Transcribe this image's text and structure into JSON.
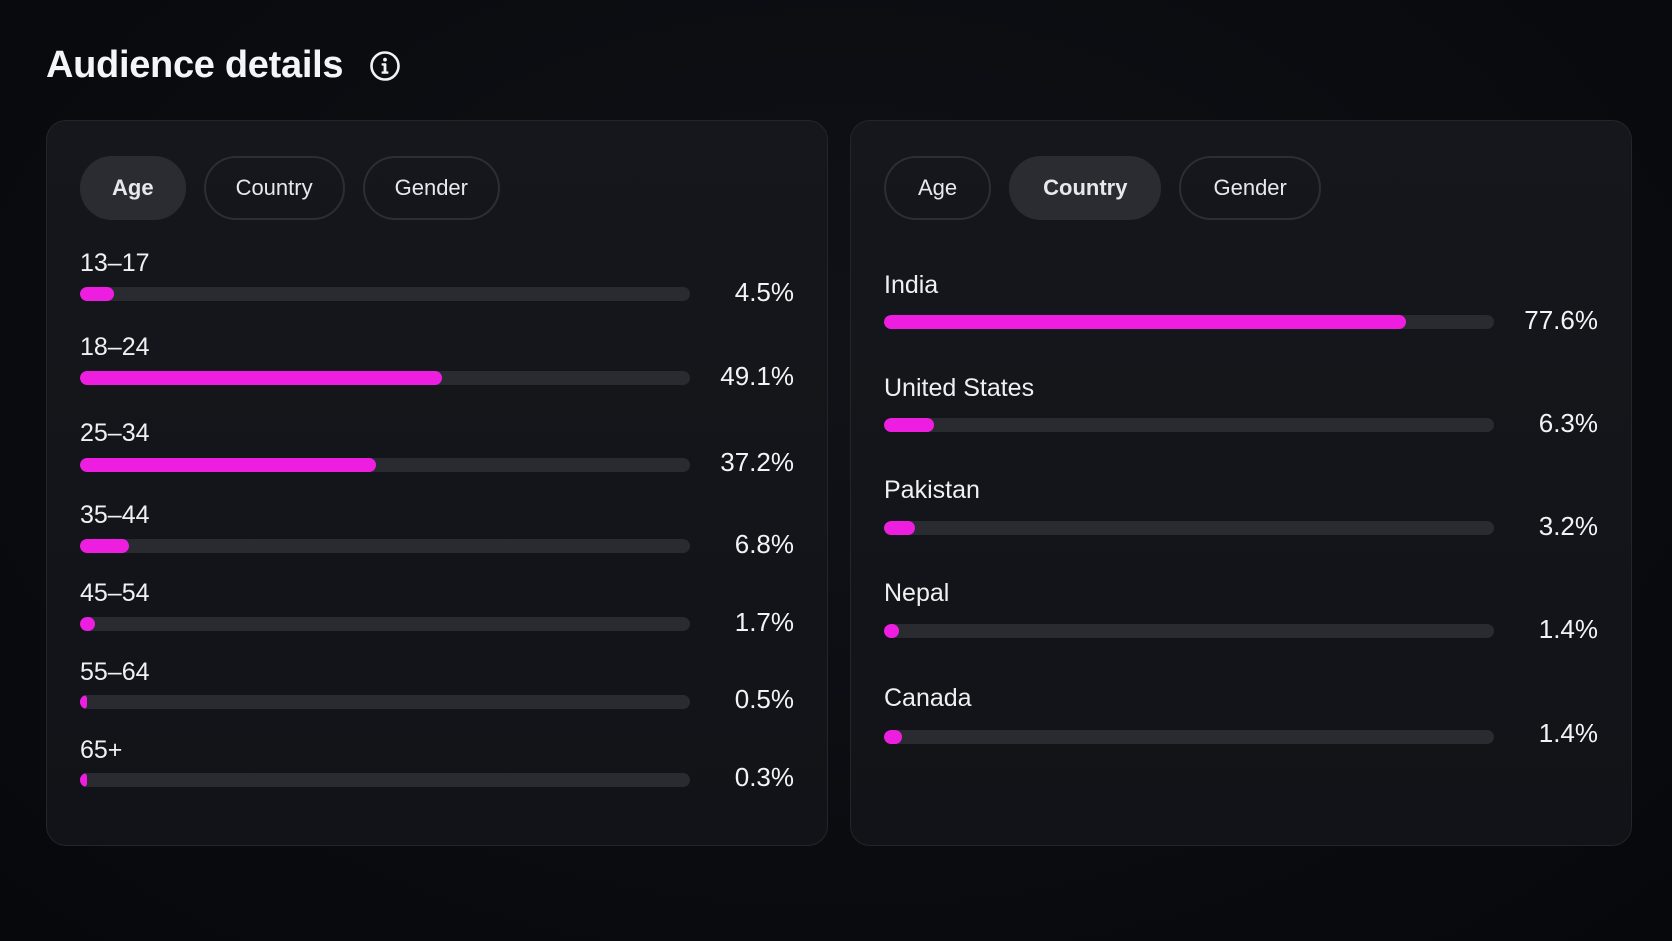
{
  "page": {
    "title": "Audience details",
    "accent": "#ee1ee0",
    "info_icon": "info-circle-icon"
  },
  "age_card": {
    "tabs": [
      {
        "label": "Age",
        "active": true
      },
      {
        "label": "Country",
        "active": false
      },
      {
        "label": "Gender",
        "active": false
      }
    ],
    "rows": [
      {
        "label": "13–17",
        "value": "4.5%",
        "fraction": 0.055
      },
      {
        "label": "18–24",
        "value": "49.1%",
        "fraction": 0.593
      },
      {
        "label": "25–34",
        "value": "37.2%",
        "fraction": 0.485
      },
      {
        "label": "35–44",
        "value": "6.8%",
        "fraction": 0.08
      },
      {
        "label": "45–54",
        "value": "1.7%",
        "fraction": 0.025
      },
      {
        "label": "55–64",
        "value": "0.5%",
        "fraction": 0.012
      },
      {
        "label": "65+",
        "value": "0.3%",
        "fraction": 0.012
      }
    ]
  },
  "country_card": {
    "tabs": [
      {
        "label": "Age",
        "active": false
      },
      {
        "label": "Country",
        "active": true
      },
      {
        "label": "Gender",
        "active": false
      }
    ],
    "rows": [
      {
        "label": "India",
        "value": "77.6%",
        "fraction": 0.856
      },
      {
        "label": "United States",
        "value": "6.3%",
        "fraction": 0.082
      },
      {
        "label": "Pakistan",
        "value": "3.2%",
        "fraction": 0.05
      },
      {
        "label": "Nepal",
        "value": "1.4%",
        "fraction": 0.025
      },
      {
        "label": "Canada",
        "value": "1.4%",
        "fraction": 0.03
      }
    ]
  }
}
